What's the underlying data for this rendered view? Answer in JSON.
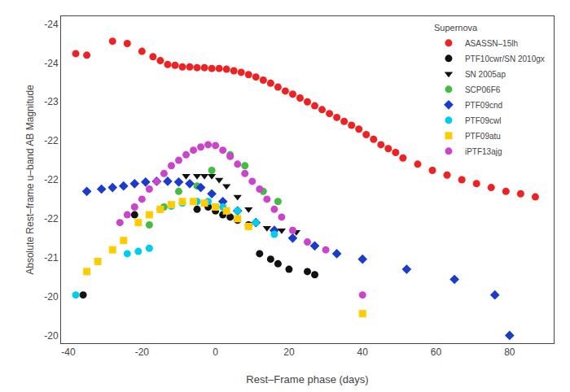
{
  "chart_data": {
    "type": "scatter",
    "xlabel": "Rest–Frame phase (days)",
    "ylabel": "Absolute Rest–frame u–band AB Magnitude",
    "legend_title": "Supernova",
    "legend": "upper right",
    "grid": false,
    "xlim": [
      -42,
      92
    ],
    "xticks": [
      -40,
      -20,
      0,
      20,
      40,
      60,
      80
    ],
    "ylim": [
      -19.9,
      -24.1
    ],
    "yticks": [
      -24,
      {
        "value": -23.5,
        "label": "-24"
      },
      -23,
      {
        "value": -22.5,
        "label": "-22"
      },
      -22,
      {
        "value": -21.5,
        "label": "-22"
      },
      -21,
      {
        "value": -20.5,
        "label": "-20"
      },
      -20
    ],
    "series": [
      {
        "name": "ASASSN–15lh",
        "color": "#ee2222",
        "marker": "circle",
        "x": [
          -38,
          -35,
          -28,
          -24,
          -20,
          -17,
          -15,
          -13,
          -11,
          -9,
          -7,
          -5,
          -3,
          -1,
          1,
          3,
          5,
          7,
          9,
          11,
          13,
          15,
          17,
          19,
          21,
          23,
          25,
          27,
          29,
          31,
          33,
          35,
          37,
          39,
          41,
          43,
          45,
          47,
          49,
          51,
          55,
          59,
          63,
          67,
          71,
          75,
          79,
          83,
          87
        ],
        "y": [
          -23.62,
          -23.6,
          -23.78,
          -23.75,
          -23.65,
          -23.58,
          -23.53,
          -23.48,
          -23.47,
          -23.45,
          -23.45,
          -23.44,
          -23.44,
          -23.43,
          -23.43,
          -23.42,
          -23.4,
          -23.38,
          -23.35,
          -23.32,
          -23.28,
          -23.24,
          -23.19,
          -23.14,
          -23.1,
          -23.05,
          -23.0,
          -22.95,
          -22.9,
          -22.85,
          -22.8,
          -22.75,
          -22.7,
          -22.65,
          -22.58,
          -22.52,
          -22.45,
          -22.4,
          -22.35,
          -22.28,
          -22.2,
          -22.12,
          -22.06,
          -22.0,
          -21.95,
          -21.9,
          -21.85,
          -21.82,
          -21.78
        ]
      },
      {
        "name": "PTF10cwr/SN 2010gx",
        "color": "#111111",
        "marker": "circle",
        "x": [
          -36,
          -22,
          -5,
          -2,
          0,
          2,
          4,
          6,
          9,
          12,
          15,
          17,
          20,
          25,
          27
        ],
        "y": [
          -20.52,
          -21.55,
          -21.62,
          -21.65,
          -21.6,
          -21.55,
          -21.52,
          -21.48,
          -21.42,
          -21.05,
          -20.98,
          -20.92,
          -20.85,
          -20.82,
          -20.78
        ]
      },
      {
        "name": "SN 2005ap",
        "color": "#111111",
        "marker": "triangle-down",
        "x": [
          -8,
          -5,
          -3,
          -1,
          1,
          3,
          6,
          9,
          14,
          18,
          22
        ],
        "y": [
          -22.05,
          -22.05,
          -22.05,
          -22.05,
          -22.0,
          -21.92,
          -21.78,
          -21.62,
          -21.38,
          -21.35,
          -21.33
        ]
      },
      {
        "name": "SCP06F6",
        "color": "#44bb44",
        "marker": "circle",
        "x": [
          -18,
          -14,
          -10,
          -5,
          -1,
          4,
          8,
          13,
          17
        ],
        "y": [
          -21.42,
          -21.65,
          -21.85,
          -21.92,
          -22.12,
          -22.32,
          -22.18,
          -21.85,
          -21.72
        ]
      },
      {
        "name": "PTF09cnd",
        "color": "#1a3bcc",
        "marker": "diamond",
        "x": [
          -35,
          -31,
          -28,
          -25,
          -22,
          -19,
          -16,
          -13,
          -10,
          -7,
          -4,
          -1,
          2,
          6,
          11,
          16,
          21,
          27,
          33,
          40,
          52,
          65,
          76,
          80
        ],
        "y": [
          -21.85,
          -21.88,
          -21.9,
          -21.92,
          -21.95,
          -21.97,
          -21.98,
          -21.98,
          -21.97,
          -21.95,
          -21.9,
          -21.82,
          -21.72,
          -21.6,
          -21.45,
          -21.35,
          -21.25,
          -21.15,
          -21.05,
          -20.98,
          -20.85,
          -20.72,
          -20.52,
          -20.0
        ]
      },
      {
        "name": "PTF09cwl",
        "color": "#00ccee",
        "marker": "circle",
        "x": [
          -38,
          -24,
          -21,
          -18,
          -15,
          -12,
          -9,
          -5,
          -2,
          2,
          6,
          11,
          16
        ],
        "y": [
          -20.52,
          -21.05,
          -21.08,
          -21.12,
          -21.62,
          -21.66,
          -21.7,
          -21.72,
          -21.72,
          -21.65,
          -21.6,
          -21.45,
          -21.3
        ]
      },
      {
        "name": "PTF09atu",
        "color": "#ffcc00",
        "marker": "square",
        "x": [
          -35,
          -32,
          -28,
          -25,
          -21,
          -18,
          -15,
          -12,
          -9,
          -6,
          -3,
          0,
          3,
          6,
          9,
          40
        ],
        "y": [
          -20.82,
          -20.95,
          -21.1,
          -21.22,
          -21.45,
          -21.55,
          -21.62,
          -21.68,
          -21.72,
          -21.72,
          -21.7,
          -21.65,
          -21.6,
          -21.5,
          -21.4,
          -20.28
        ]
      },
      {
        "name": "iPTF13ajg",
        "color": "#cc44cc",
        "marker": "circle",
        "x": [
          -26,
          -24,
          -22,
          -20,
          -18,
          -16,
          -14,
          -12,
          -10,
          -8,
          -6,
          -4,
          -2,
          0,
          2,
          4,
          6,
          8,
          10,
          12,
          14,
          16,
          18,
          21,
          25,
          30,
          40
        ],
        "y": [
          -21.45,
          -21.55,
          -21.65,
          -21.75,
          -21.88,
          -21.98,
          -22.08,
          -22.18,
          -22.25,
          -22.32,
          -22.38,
          -22.42,
          -22.45,
          -22.44,
          -22.38,
          -22.3,
          -22.2,
          -22.08,
          -21.98,
          -21.88,
          -21.75,
          -21.62,
          -21.52,
          -21.35,
          -21.2,
          -21.1,
          -20.52
        ]
      }
    ]
  }
}
